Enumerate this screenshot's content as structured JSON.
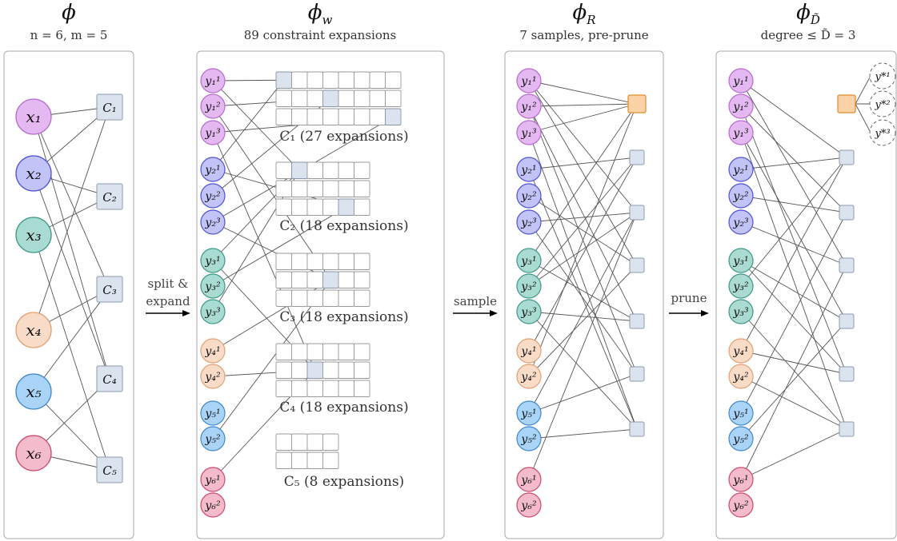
{
  "colors": {
    "x1": {
      "fill": "#e4b9f1",
      "stroke": "#b86ad0",
      "text": "#a347c8"
    },
    "x2": {
      "fill": "#c2c4f7",
      "stroke": "#4e52d6",
      "text": "#3035b8"
    },
    "x3": {
      "fill": "#a9dbd2",
      "stroke": "#3c9988",
      "text": "#257a6a"
    },
    "x4": {
      "fill": "#f9dcc7",
      "stroke": "#e2a072",
      "text": "#d8895a"
    },
    "x5": {
      "fill": "#a9d3f7",
      "stroke": "#3e88cf",
      "text": "#1e4b94"
    },
    "x6": {
      "fill": "#f4bccb",
      "stroke": "#cc4a6e",
      "text": "#c42550"
    },
    "factor_fill": "#dbe3ef",
    "sample_factor_fill": "#fcd3a6",
    "sample_factor_stroke": "#e08c2c"
  },
  "panels": [
    {
      "title": "ϕ",
      "subtitle": "n = 6,  m = 5"
    },
    {
      "title": "ϕ",
      "title_sub": "w",
      "subtitle": "89 constraint expansions"
    },
    {
      "title": "ϕ",
      "title_sub": "R",
      "subtitle": "7 samples, pre-prune"
    },
    {
      "title": "ϕ",
      "title_sub": "D̃",
      "subtitle": "degree ≤ D̃ = 3"
    }
  ],
  "arrows": [
    {
      "label_lines": [
        "split &",
        "expand"
      ]
    },
    {
      "label_lines": [
        "sample"
      ]
    },
    {
      "label_lines": [
        "prune"
      ]
    }
  ],
  "phi": {
    "variables": [
      "x₁",
      "x₂",
      "x₃",
      "x₄",
      "x₅",
      "x₆"
    ],
    "constraints": [
      "C₁",
      "C₂",
      "C₃",
      "C₄",
      "C₅"
    ]
  },
  "expansion_labels": [
    "C₁  (27 expansions)",
    "C₂  (18 expansions)",
    "C₃  (18 expansions)",
    "C₄  (18 expansions)",
    "C₅  (8 expansions)"
  ],
  "split_variables": [
    "y₁¹",
    "y₁²",
    "y₁³",
    "y₂¹",
    "y₂²",
    "y₂³",
    "y₃¹",
    "y₃²",
    "y₃³",
    "y₄¹",
    "y₄²",
    "y₅¹",
    "y₅²",
    "y₆¹",
    "y₆²"
  ],
  "star_variables": [
    "y*¹",
    "y*²",
    "y*³"
  ]
}
